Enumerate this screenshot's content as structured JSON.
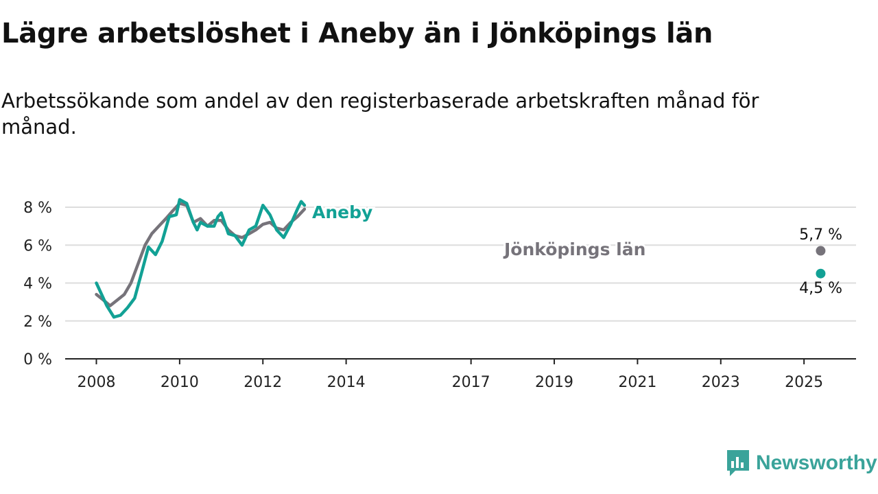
{
  "title": "Lägre arbetslöshet i Aneby än i Jönköpings län",
  "subtitle": "Arbetssökande som andel av den registerbaserade arbetskraften månad för månad.",
  "brand": {
    "name": "Newsworthy",
    "icon": "newsworthy-logo-icon"
  },
  "colors": {
    "aneby": "#12a195",
    "lan": "#76737a",
    "grid": "#dddddd",
    "axis": "#222222",
    "brand": "#3aa39a"
  },
  "chart_data": {
    "type": "line",
    "title": "Lägre arbetslöshet i Aneby än i Jönköpings län",
    "xlabel": "",
    "ylabel": "",
    "x_ticks": [
      "2008",
      "2010",
      "2012",
      "2014",
      "2017",
      "2019",
      "2021",
      "2023",
      "2025"
    ],
    "y_ticks": [
      "0 %",
      "2 %",
      "4 %",
      "6 %",
      "8 %"
    ],
    "ylim": [
      0,
      8.4
    ],
    "xlim": [
      2007.25,
      2026.25
    ],
    "grid": true,
    "legend": "inline labels",
    "series": [
      {
        "name": "Aneby",
        "end_label": "4,5 %",
        "points": [
          [
            2008.0,
            4.0
          ],
          [
            2008.25,
            2.8
          ],
          [
            2008.42,
            2.2
          ],
          [
            2008.58,
            2.3
          ],
          [
            2008.75,
            2.7
          ],
          [
            2008.92,
            3.2
          ],
          [
            2009.08,
            4.5
          ],
          [
            2009.25,
            5.9
          ],
          [
            2009.42,
            5.5
          ],
          [
            2009.58,
            6.2
          ],
          [
            2009.75,
            7.5
          ],
          [
            2009.92,
            7.6
          ],
          [
            2010.0,
            8.4
          ],
          [
            2010.17,
            8.2
          ],
          [
            2010.33,
            7.2
          ],
          [
            2010.42,
            6.8
          ],
          [
            2010.5,
            7.2
          ],
          [
            2010.67,
            7.0
          ],
          [
            2010.83,
            7.0
          ],
          [
            2010.92,
            7.5
          ],
          [
            2011.0,
            7.7
          ],
          [
            2011.17,
            6.6
          ],
          [
            2011.33,
            6.5
          ],
          [
            2011.5,
            6.0
          ],
          [
            2011.67,
            6.8
          ],
          [
            2011.83,
            7.0
          ],
          [
            2012.0,
            8.1
          ],
          [
            2012.17,
            7.6
          ],
          [
            2012.33,
            6.8
          ],
          [
            2012.5,
            6.4
          ],
          [
            2012.67,
            7.1
          ],
          [
            2012.83,
            7.9
          ],
          [
            2012.92,
            8.3
          ],
          [
            2013.0,
            8.1
          ]
        ]
      },
      {
        "name": "Jönköpings län",
        "end_label": "5,7 %",
        "points": [
          [
            2008.0,
            3.4
          ],
          [
            2008.17,
            3.1
          ],
          [
            2008.33,
            2.8
          ],
          [
            2008.5,
            3.1
          ],
          [
            2008.67,
            3.4
          ],
          [
            2008.83,
            4.0
          ],
          [
            2009.0,
            5.0
          ],
          [
            2009.17,
            6.0
          ],
          [
            2009.33,
            6.6
          ],
          [
            2009.5,
            7.0
          ],
          [
            2009.67,
            7.4
          ],
          [
            2009.83,
            7.8
          ],
          [
            2010.0,
            8.2
          ],
          [
            2010.17,
            8.1
          ],
          [
            2010.33,
            7.2
          ],
          [
            2010.5,
            7.4
          ],
          [
            2010.67,
            7.0
          ],
          [
            2010.83,
            7.3
          ],
          [
            2011.0,
            7.3
          ],
          [
            2011.17,
            6.8
          ],
          [
            2011.33,
            6.5
          ],
          [
            2011.5,
            6.4
          ],
          [
            2011.67,
            6.6
          ],
          [
            2011.83,
            6.8
          ],
          [
            2012.0,
            7.1
          ],
          [
            2012.17,
            7.2
          ],
          [
            2012.33,
            6.9
          ],
          [
            2012.5,
            6.8
          ],
          [
            2012.67,
            7.2
          ],
          [
            2012.83,
            7.5
          ],
          [
            2013.0,
            7.9
          ]
        ]
      }
    ]
  }
}
